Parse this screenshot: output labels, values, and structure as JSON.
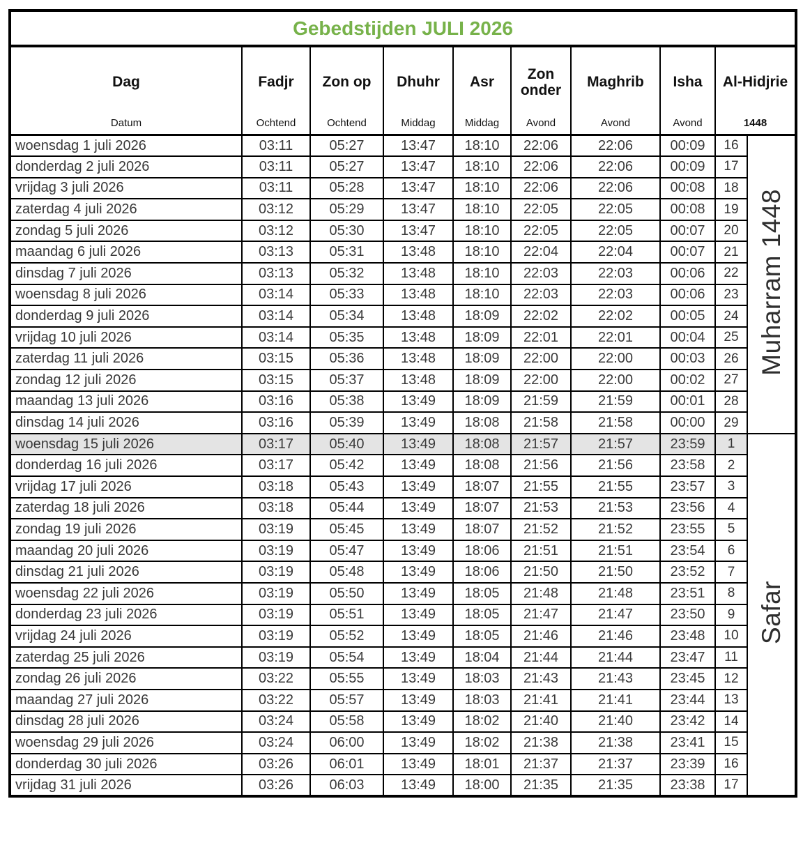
{
  "title": "Gebedstijden JULI 2026",
  "colors": {
    "title_green": "#77B24A",
    "highlight_gray": "#E4E4E4",
    "border_black": "#000000"
  },
  "header": {
    "columns": [
      {
        "label": "Dag",
        "sub": "Datum"
      },
      {
        "label": "Fadjr",
        "sub": "Ochtend"
      },
      {
        "label": "Zon op",
        "sub": "Ochtend"
      },
      {
        "label": "Dhuhr",
        "sub": "Middag"
      },
      {
        "label": "Asr",
        "sub": "Middag"
      },
      {
        "label": "Zon onder",
        "sub": "Avond"
      },
      {
        "label": "Maghrib",
        "sub": "Avond"
      },
      {
        "label": "Isha",
        "sub": "Avond"
      },
      {
        "label": "Al-Hidjrie",
        "sub": "1448"
      }
    ]
  },
  "islamic_months": [
    {
      "label": "Muharram 1448",
      "row_span": 14
    },
    {
      "label": "Safar",
      "row_span": 17
    }
  ],
  "highlighted_row_index": 14,
  "rows": [
    [
      "woensdag 1 juli 2026",
      "03:11",
      "05:27",
      "13:47",
      "18:10",
      "22:06",
      "22:06",
      "00:09",
      "16"
    ],
    [
      "donderdag 2 juli 2026",
      "03:11",
      "05:27",
      "13:47",
      "18:10",
      "22:06",
      "22:06",
      "00:09",
      "17"
    ],
    [
      "vrijdag 3 juli 2026",
      "03:11",
      "05:28",
      "13:47",
      "18:10",
      "22:06",
      "22:06",
      "00:08",
      "18"
    ],
    [
      "zaterdag 4 juli 2026",
      "03:12",
      "05:29",
      "13:47",
      "18:10",
      "22:05",
      "22:05",
      "00:08",
      "19"
    ],
    [
      "zondag 5 juli 2026",
      "03:12",
      "05:30",
      "13:47",
      "18:10",
      "22:05",
      "22:05",
      "00:07",
      "20"
    ],
    [
      "maandag 6 juli 2026",
      "03:13",
      "05:31",
      "13:48",
      "18:10",
      "22:04",
      "22:04",
      "00:07",
      "21"
    ],
    [
      "dinsdag 7 juli 2026",
      "03:13",
      "05:32",
      "13:48",
      "18:10",
      "22:03",
      "22:03",
      "00:06",
      "22"
    ],
    [
      "woensdag 8 juli 2026",
      "03:14",
      "05:33",
      "13:48",
      "18:10",
      "22:03",
      "22:03",
      "00:06",
      "23"
    ],
    [
      "donderdag 9 juli 2026",
      "03:14",
      "05:34",
      "13:48",
      "18:09",
      "22:02",
      "22:02",
      "00:05",
      "24"
    ],
    [
      "vrijdag 10 juli 2026",
      "03:14",
      "05:35",
      "13:48",
      "18:09",
      "22:01",
      "22:01",
      "00:04",
      "25"
    ],
    [
      "zaterdag 11 juli 2026",
      "03:15",
      "05:36",
      "13:48",
      "18:09",
      "22:00",
      "22:00",
      "00:03",
      "26"
    ],
    [
      "zondag 12 juli 2026",
      "03:15",
      "05:37",
      "13:48",
      "18:09",
      "22:00",
      "22:00",
      "00:02",
      "27"
    ],
    [
      "maandag 13 juli 2026",
      "03:16",
      "05:38",
      "13:49",
      "18:09",
      "21:59",
      "21:59",
      "00:01",
      "28"
    ],
    [
      "dinsdag 14 juli 2026",
      "03:16",
      "05:39",
      "13:49",
      "18:08",
      "21:58",
      "21:58",
      "00:00",
      "29"
    ],
    [
      "woensdag 15 juli 2026",
      "03:17",
      "05:40",
      "13:49",
      "18:08",
      "21:57",
      "21:57",
      "23:59",
      "1"
    ],
    [
      "donderdag 16 juli 2026",
      "03:17",
      "05:42",
      "13:49",
      "18:08",
      "21:56",
      "21:56",
      "23:58",
      "2"
    ],
    [
      "vrijdag 17 juli 2026",
      "03:18",
      "05:43",
      "13:49",
      "18:07",
      "21:55",
      "21:55",
      "23:57",
      "3"
    ],
    [
      "zaterdag 18 juli 2026",
      "03:18",
      "05:44",
      "13:49",
      "18:07",
      "21:53",
      "21:53",
      "23:56",
      "4"
    ],
    [
      "zondag 19 juli 2026",
      "03:19",
      "05:45",
      "13:49",
      "18:07",
      "21:52",
      "21:52",
      "23:55",
      "5"
    ],
    [
      "maandag 20 juli 2026",
      "03:19",
      "05:47",
      "13:49",
      "18:06",
      "21:51",
      "21:51",
      "23:54",
      "6"
    ],
    [
      "dinsdag 21 juli 2026",
      "03:19",
      "05:48",
      "13:49",
      "18:06",
      "21:50",
      "21:50",
      "23:52",
      "7"
    ],
    [
      "woensdag 22 juli 2026",
      "03:19",
      "05:50",
      "13:49",
      "18:05",
      "21:48",
      "21:48",
      "23:51",
      "8"
    ],
    [
      "donderdag 23 juli 2026",
      "03:19",
      "05:51",
      "13:49",
      "18:05",
      "21:47",
      "21:47",
      "23:50",
      "9"
    ],
    [
      "vrijdag 24 juli 2026",
      "03:19",
      "05:52",
      "13:49",
      "18:05",
      "21:46",
      "21:46",
      "23:48",
      "10"
    ],
    [
      "zaterdag 25 juli 2026",
      "03:19",
      "05:54",
      "13:49",
      "18:04",
      "21:44",
      "21:44",
      "23:47",
      "11"
    ],
    [
      "zondag 26 juli 2026",
      "03:22",
      "05:55",
      "13:49",
      "18:03",
      "21:43",
      "21:43",
      "23:45",
      "12"
    ],
    [
      "maandag 27 juli 2026",
      "03:22",
      "05:57",
      "13:49",
      "18:03",
      "21:41",
      "21:41",
      "23:44",
      "13"
    ],
    [
      "dinsdag 28 juli 2026",
      "03:24",
      "05:58",
      "13:49",
      "18:02",
      "21:40",
      "21:40",
      "23:42",
      "14"
    ],
    [
      "woensdag 29 juli 2026",
      "03:24",
      "06:00",
      "13:49",
      "18:02",
      "21:38",
      "21:38",
      "23:41",
      "15"
    ],
    [
      "donderdag 30 juli 2026",
      "03:26",
      "06:01",
      "13:49",
      "18:01",
      "21:37",
      "21:37",
      "23:39",
      "16"
    ],
    [
      "vrijdag 31 juli 2026",
      "03:26",
      "06:03",
      "13:49",
      "18:00",
      "21:35",
      "21:35",
      "23:38",
      "17"
    ]
  ]
}
